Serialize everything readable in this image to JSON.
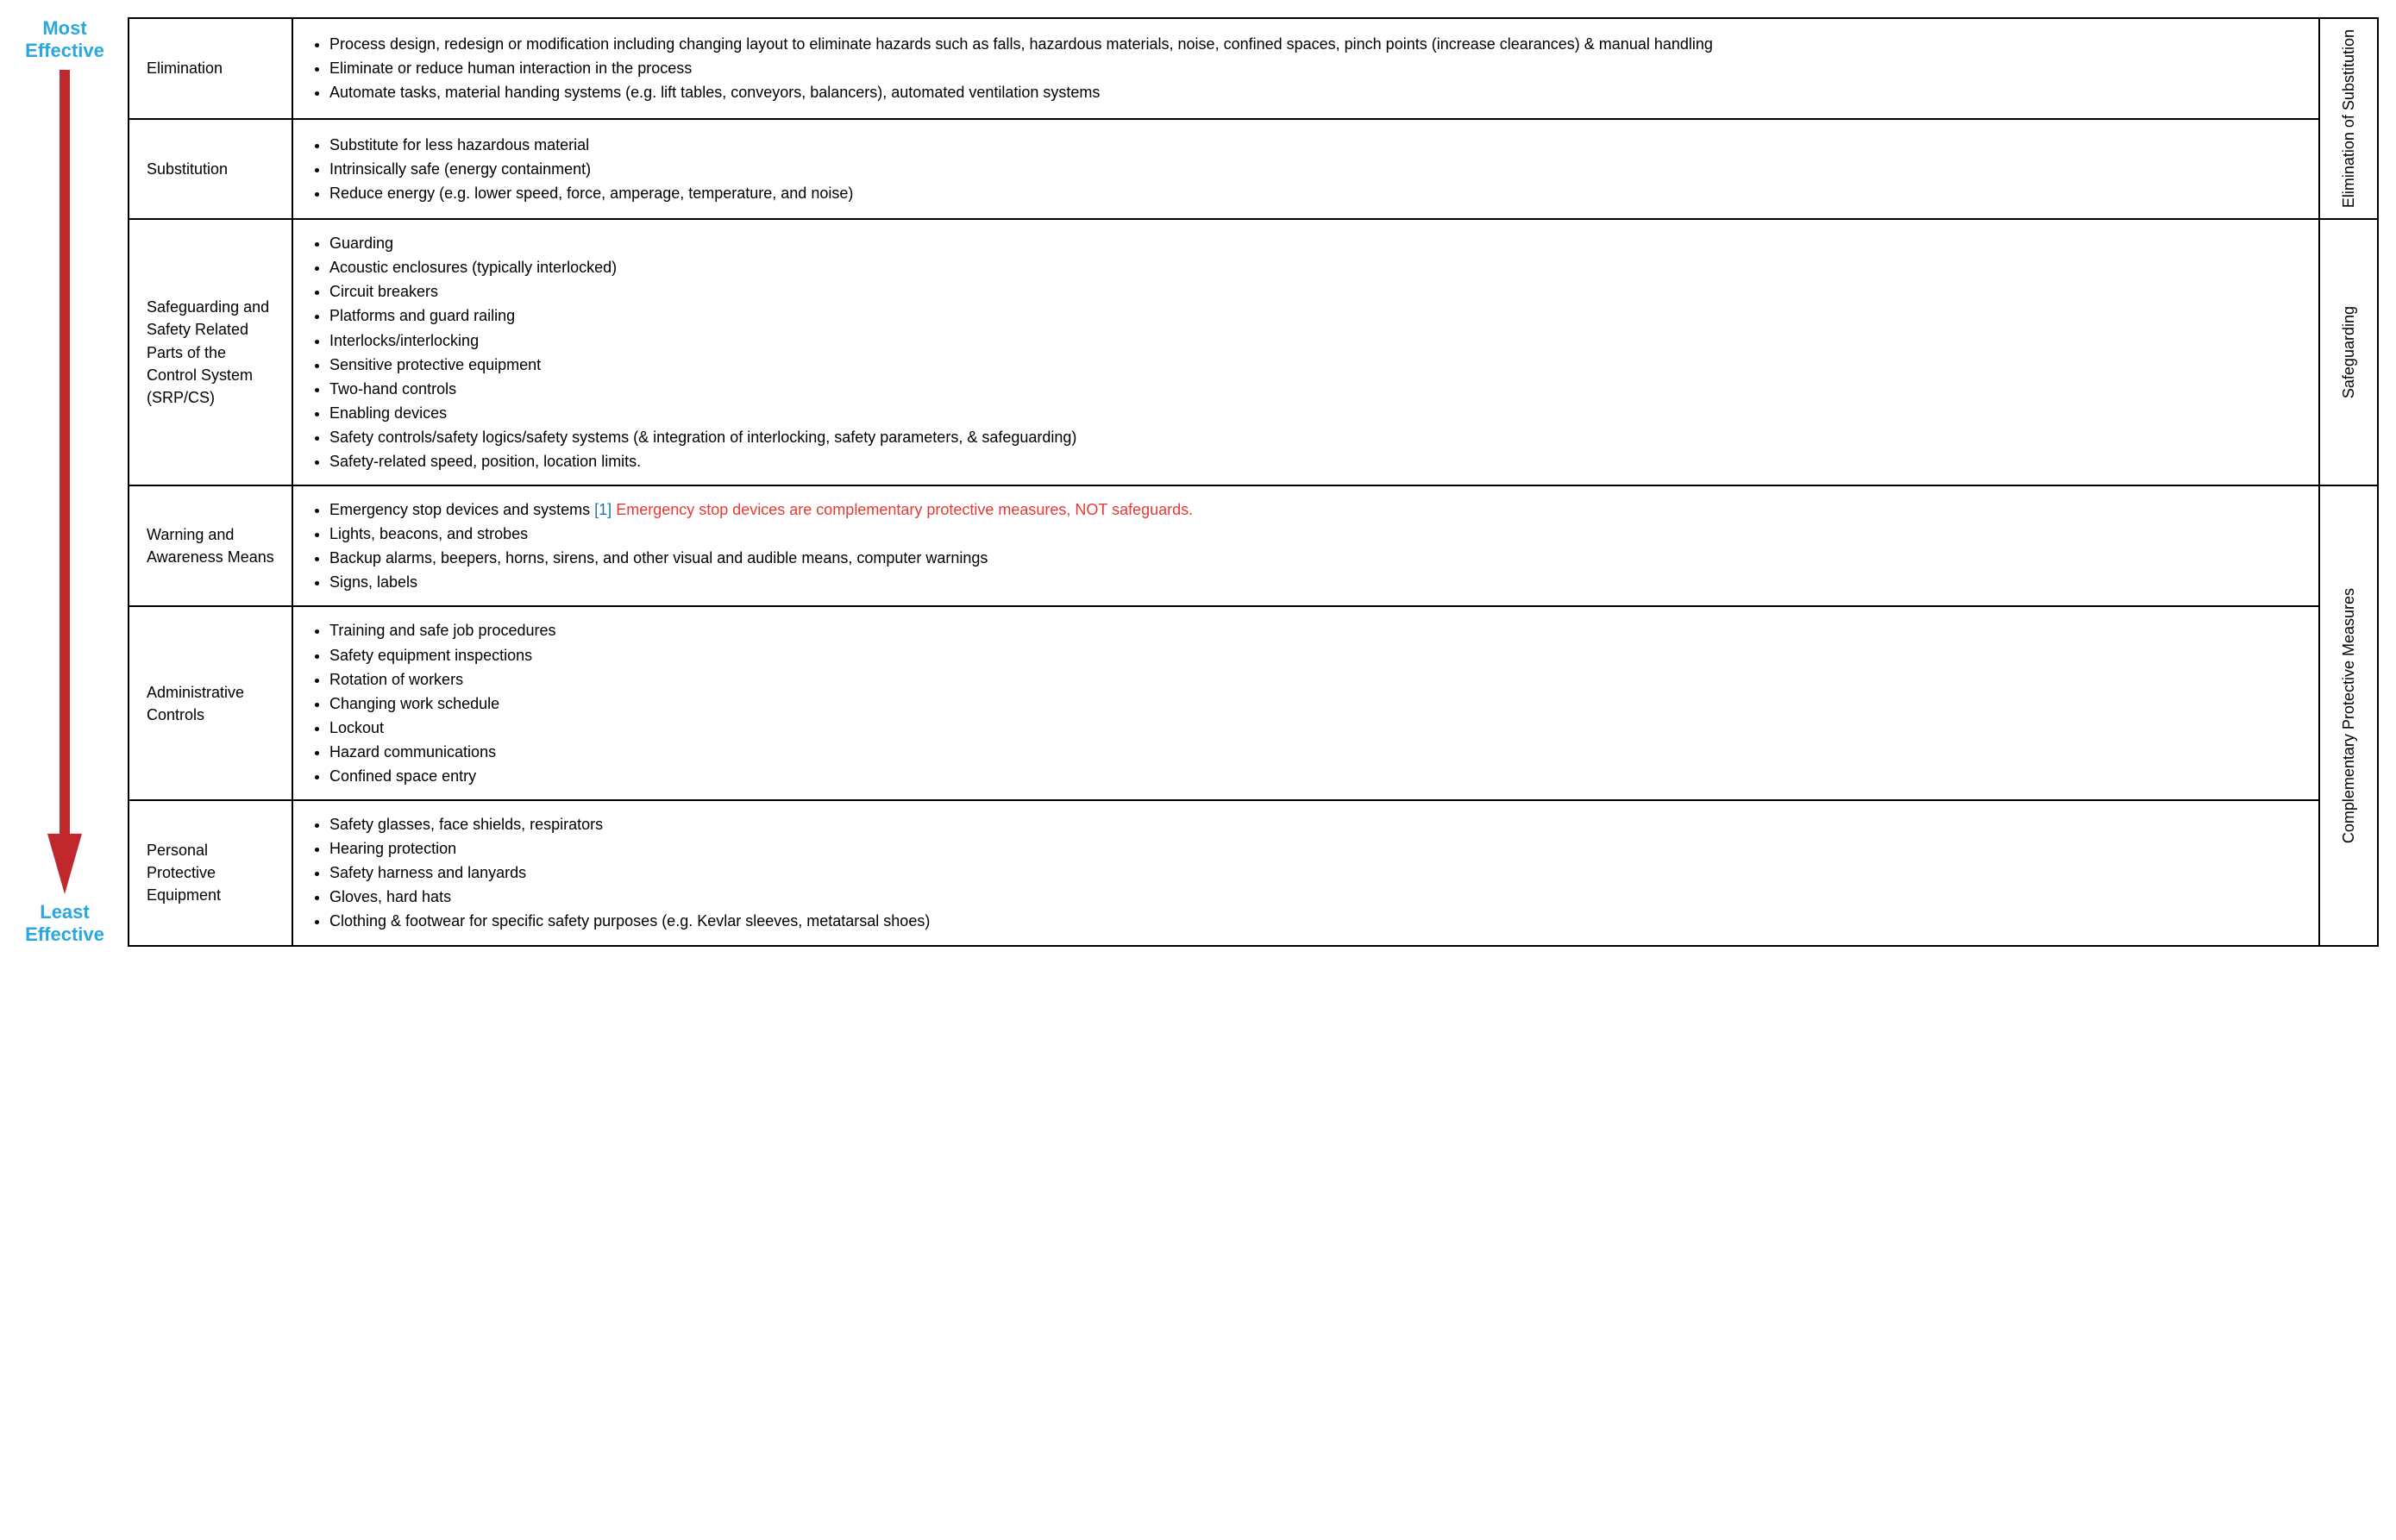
{
  "colors": {
    "arrow": "#c0282d",
    "arrow_label": "#29a8e0",
    "border": "#000000",
    "text": "#000000",
    "ref_marker": "#1b75bb",
    "note_text": "#e53935",
    "background": "#ffffff"
  },
  "typography": {
    "base_fontsize": 18,
    "label_fontsize": 22,
    "row_label_fontsize": 18,
    "group_label_fontsize": 18,
    "font_family": "sans-serif"
  },
  "layout": {
    "arrow_col_width": 110,
    "row_label_width": 190,
    "group_label_width": 50,
    "border_width": 2
  },
  "arrow": {
    "top_label_line1": "Most",
    "top_label_line2": "Effective",
    "bottom_label_line1": "Least",
    "bottom_label_line2": "Effective"
  },
  "groups": [
    {
      "label": "Elimination of Substitution",
      "span": 2
    },
    {
      "label": "Safeguarding",
      "span": 1
    },
    {
      "label": "Complementary Protective Measures",
      "span": 3
    }
  ],
  "rows": [
    {
      "label": "Elimination",
      "items": [
        {
          "text": "Process design, redesign or modification including changing layout to eliminate hazards such as falls, hazardous materials, noise, confined spaces, pinch points (increase clearances) & manual handling"
        },
        {
          "text": "Eliminate or reduce human interaction in the process"
        },
        {
          "text": "Automate tasks, material handing systems (e.g. lift tables, conveyors, balancers), automated ventilation systems"
        }
      ]
    },
    {
      "label": "Substitution",
      "items": [
        {
          "text": "Substitute for less hazardous material"
        },
        {
          "text": "Intrinsically safe (energy containment)"
        },
        {
          "text": "Reduce energy (e.g. lower speed, force, amperage, temperature, and noise)"
        }
      ]
    },
    {
      "label": "Safeguarding and Safety Related Parts of the Control System (SRP/CS)",
      "items": [
        {
          "text": "Guarding"
        },
        {
          "text": "Acoustic enclosures (typically interlocked)"
        },
        {
          "text": "Circuit breakers"
        },
        {
          "text": "Platforms and guard railing"
        },
        {
          "text": "Interlocks/interlocking"
        },
        {
          "text": "Sensitive protective equipment"
        },
        {
          "text": "Two-hand controls"
        },
        {
          "text": "Enabling devices"
        },
        {
          "text": "Safety controls/safety logics/safety systems (& integration of interlocking, safety parameters, & safeguarding)"
        },
        {
          "text": "Safety-related speed, position, location limits."
        }
      ]
    },
    {
      "label": "Warning and Awareness Means",
      "items": [
        {
          "text": "Emergency stop devices and systems",
          "ref": "[1]",
          "note": "Emergency stop devices are complementary protective measures, NOT safeguards."
        },
        {
          "text": "Lights, beacons, and strobes"
        },
        {
          "text": "Backup alarms, beepers, horns, sirens, and other visual and audible means, computer warnings"
        },
        {
          "text": "Signs, labels"
        }
      ]
    },
    {
      "label": "Administrative Controls",
      "items": [
        {
          "text": "Training and safe job procedures"
        },
        {
          "text": "Safety equipment inspections"
        },
        {
          "text": "Rotation of workers"
        },
        {
          "text": "Changing work schedule"
        },
        {
          "text": "Lockout"
        },
        {
          "text": "Hazard communications"
        },
        {
          "text": "Confined space entry"
        }
      ]
    },
    {
      "label": "Personal Protective Equipment",
      "items": [
        {
          "text": "Safety glasses, face shields, respirators"
        },
        {
          "text": "Hearing protection"
        },
        {
          "text": "Safety harness and lanyards"
        },
        {
          "text": "Gloves, hard hats"
        },
        {
          "text": "Clothing & footwear for specific safety purposes (e.g. Kevlar sleeves, metatarsal shoes)"
        }
      ]
    }
  ]
}
